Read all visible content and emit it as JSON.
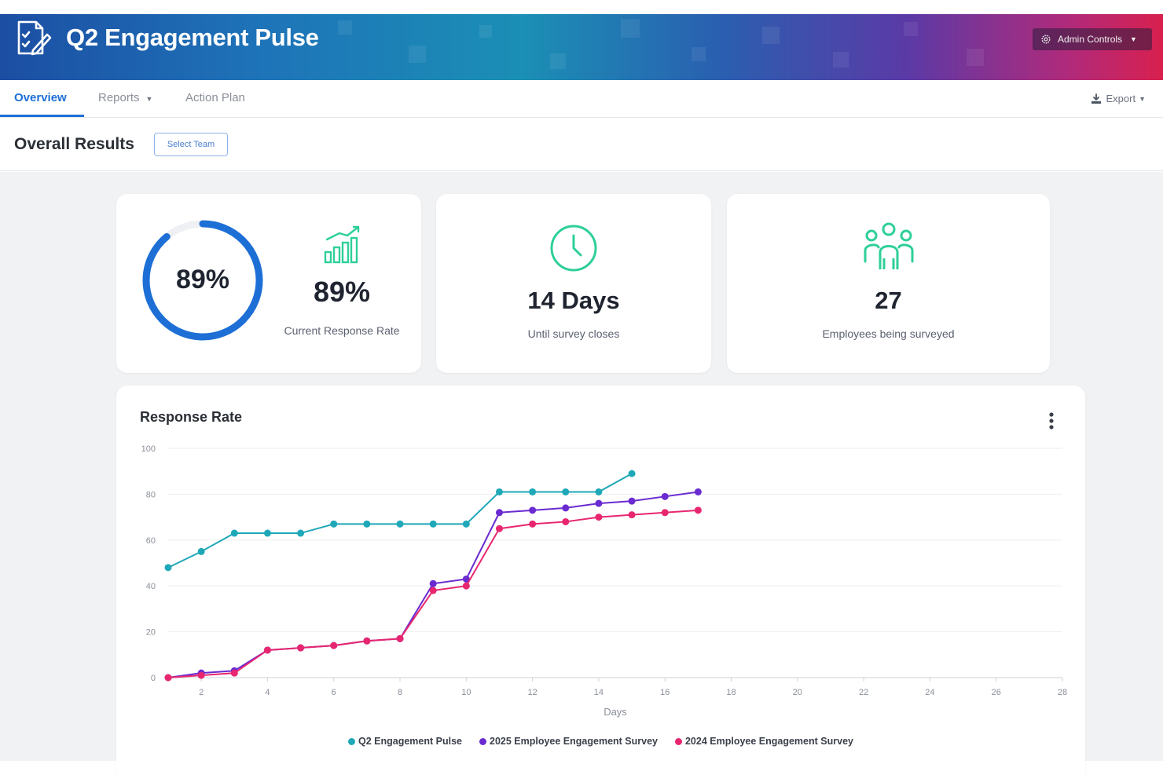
{
  "header": {
    "title": "Q2 Engagement Pulse",
    "admin_label": "Admin Controls"
  },
  "nav": {
    "tabs": [
      {
        "label": "Overview"
      },
      {
        "label": "Reports"
      },
      {
        "label": "Action Plan"
      }
    ],
    "export_label": "Export"
  },
  "subheader": {
    "title": "Overall Results",
    "select_team_label": "Select Team"
  },
  "kpis": {
    "response": {
      "ring_value": "89%",
      "value": "89%",
      "label": "Current Response Rate",
      "fraction": 0.89
    },
    "days": {
      "value": "14 Days",
      "label": "Until survey closes"
    },
    "employees": {
      "value": "27",
      "label": "Employees being surveyed"
    }
  },
  "colors": {
    "accent": "#1d6fd6",
    "icon_green": "#2ecf9a",
    "teal": "#1fa8b8",
    "purple": "#6a2bd1",
    "pink": "#e8266f"
  },
  "chart_data": {
    "type": "line",
    "title": "Response Rate",
    "xlabel": "Days",
    "ylabel": "",
    "xlim": [
      1,
      28
    ],
    "ylim": [
      0,
      100
    ],
    "x_ticks": [
      2,
      4,
      6,
      8,
      10,
      12,
      14,
      16,
      18,
      20,
      22,
      24,
      26,
      28
    ],
    "y_ticks": [
      0,
      20,
      40,
      60,
      80,
      100
    ],
    "grid": true,
    "legend": "bottom",
    "series": [
      {
        "name": "Q2 Engagement Pulse",
        "color": "#1fa8b8",
        "x": [
          1,
          2,
          3,
          4,
          5,
          6,
          7,
          8,
          9,
          10,
          11,
          12,
          13,
          14,
          15
        ],
        "y": [
          48,
          55,
          63,
          63,
          63,
          67,
          67,
          67,
          67,
          67,
          81,
          81,
          81,
          81,
          89
        ]
      },
      {
        "name": "2025 Employee Engagement Survey",
        "color": "#6a2bd1",
        "x": [
          1,
          2,
          3,
          4,
          5,
          6,
          7,
          8,
          9,
          10,
          11,
          12,
          13,
          14,
          15,
          16,
          17
        ],
        "y": [
          0,
          2,
          3,
          12,
          13,
          14,
          16,
          17,
          41,
          43,
          72,
          73,
          74,
          76,
          77,
          79,
          81
        ]
      },
      {
        "name": "2024 Employee Engagement Survey",
        "color": "#e8266f",
        "x": [
          1,
          2,
          3,
          4,
          5,
          6,
          7,
          8,
          9,
          10,
          11,
          12,
          13,
          14,
          15,
          16,
          17
        ],
        "y": [
          0,
          1,
          2,
          12,
          13,
          14,
          16,
          17,
          38,
          40,
          65,
          67,
          68,
          70,
          71,
          72,
          73
        ]
      }
    ]
  }
}
